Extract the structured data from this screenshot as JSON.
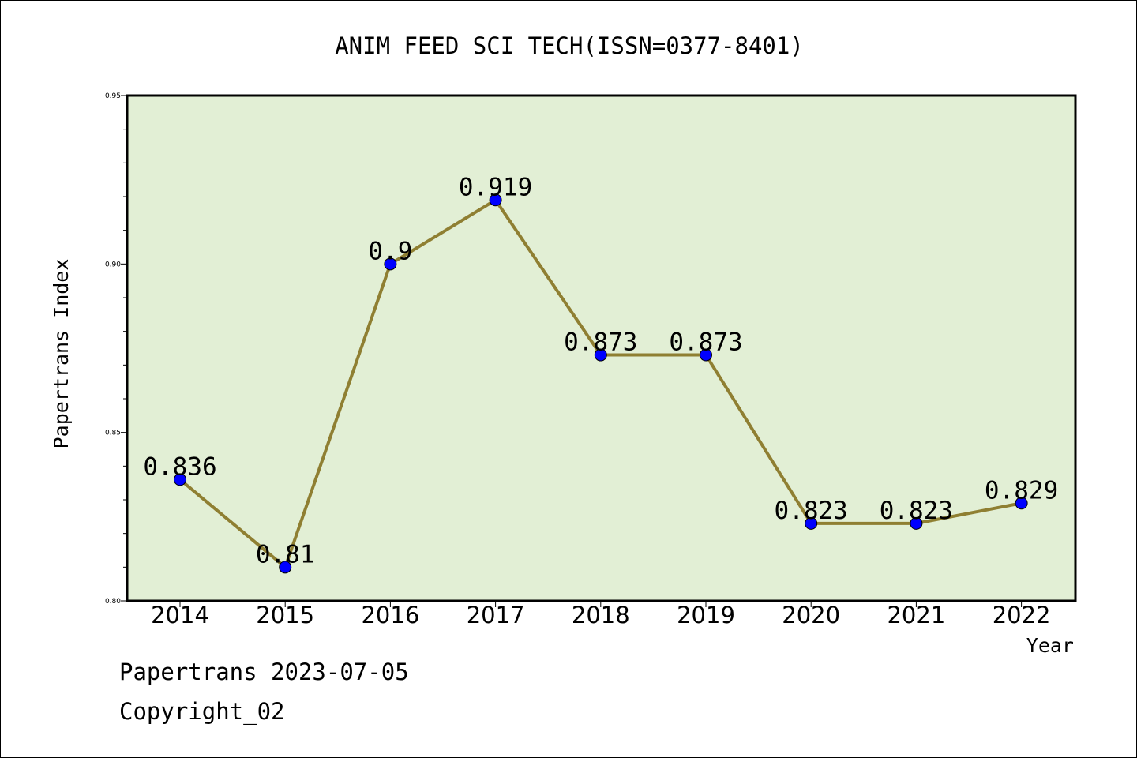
{
  "chart_data": {
    "type": "line",
    "title": "ANIM FEED SCI TECH(ISSN=0377-8401)",
    "xlabel": "Year",
    "ylabel": "Papertrans Index",
    "categories": [
      "2014",
      "2015",
      "2016",
      "2017",
      "2018",
      "2019",
      "2020",
      "2021",
      "2022"
    ],
    "values": [
      0.836,
      0.81,
      0.9,
      0.919,
      0.873,
      0.873,
      0.823,
      0.823,
      0.829
    ],
    "data_labels": [
      "0.836",
      "0.81",
      "0.9",
      "0.919",
      "0.873",
      "0.873",
      "0.823",
      "0.823",
      "0.829"
    ],
    "ylim": [
      0.8,
      0.95
    ],
    "yticks": [
      "0.80",
      "0.85",
      "0.90",
      "0.95"
    ],
    "grid": false,
    "colors": {
      "plot_background": "#e2efd5",
      "line": "#8f7f32",
      "marker": "#0000ff",
      "frame": "#000000"
    }
  },
  "footer": {
    "line1": "Papertrans 2023-07-05",
    "line2": "Copyright_02"
  }
}
